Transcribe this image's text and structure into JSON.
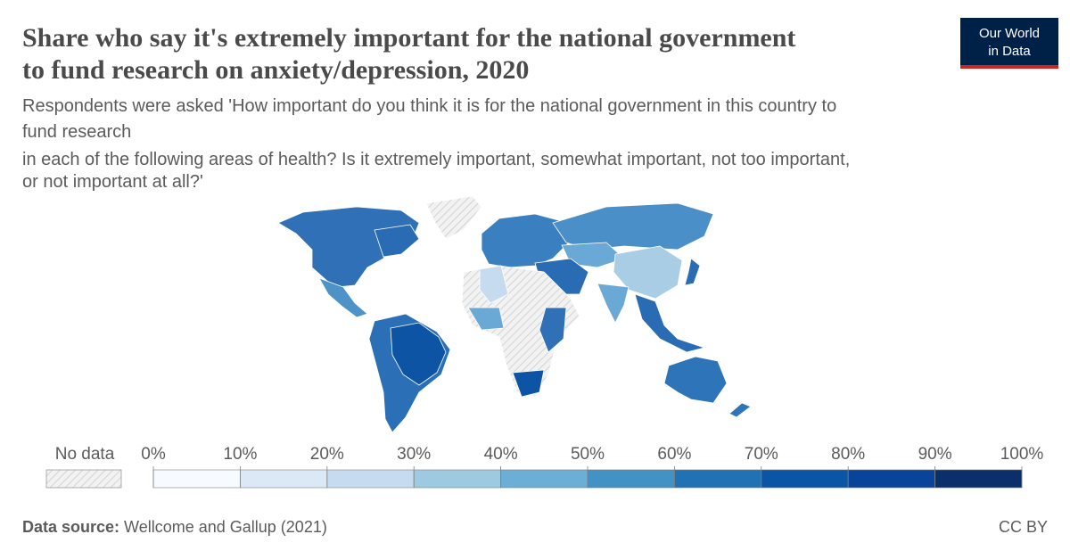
{
  "chart_data": {
    "type": "choropleth",
    "title": [
      "Share who say it's extremely important for the national government",
      "to fund research on anxiety/depression, 2020"
    ],
    "subtitle": [
      "Respondents were asked 'How important do you think it is for the national government in this country to",
      "fund research",
      "in each of the following areas of health? Is it extremely important, somewhat important, not too important,",
      "or not important at all?'"
    ],
    "legend": {
      "no_data_label": "No data",
      "xlim": [
        0,
        100
      ],
      "ticks": [
        {
          "value": 0,
          "label": "0%"
        },
        {
          "value": 10,
          "label": "10%"
        },
        {
          "value": 20,
          "label": "20%"
        },
        {
          "value": 30,
          "label": "30%"
        },
        {
          "value": 40,
          "label": "40%"
        },
        {
          "value": 50,
          "label": "50%"
        },
        {
          "value": 60,
          "label": "60%"
        },
        {
          "value": 70,
          "label": "70%"
        },
        {
          "value": 80,
          "label": "80%"
        },
        {
          "value": 90,
          "label": "90%"
        },
        {
          "value": 100,
          "label": "100%"
        }
      ],
      "colors": [
        "#f7fbff",
        "#dbe9f6",
        "#c6dbef",
        "#9ecae1",
        "#6baed6",
        "#4292c6",
        "#2171b5",
        "#0b55a6",
        "#08449a",
        "#0a2f6b"
      ]
    },
    "source_label": "Data source:",
    "source": "Wellcome and Gallup (2021)",
    "license": "CC BY",
    "logo": [
      "Our World",
      "in Data"
    ]
  }
}
